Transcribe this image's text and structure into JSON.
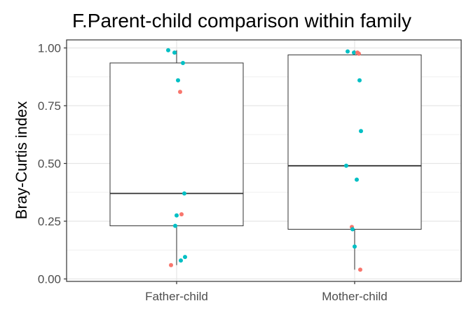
{
  "chart_data": {
    "type": "box",
    "title": "F.Parent-child comparison within family",
    "xlabel": "",
    "ylabel": "Bray-Curtis index",
    "categories": [
      "Father-child",
      "Mother-child"
    ],
    "ylim": [
      0,
      1.0
    ],
    "yticks": [
      0.0,
      0.25,
      0.5,
      0.75,
      1.0
    ],
    "ytick_labels": [
      "0.00",
      "0.25",
      "0.50",
      "0.75",
      "1.00"
    ],
    "grid": true,
    "legend": "none",
    "boxes": [
      {
        "category": "Father-child",
        "whisker_low": 0.06,
        "q1": 0.23,
        "median": 0.37,
        "q3": 0.935,
        "whisker_high": 0.99
      },
      {
        "category": "Mother-child",
        "whisker_low": 0.04,
        "q1": 0.215,
        "median": 0.49,
        "q3": 0.97,
        "whisker_high": 0.99
      }
    ],
    "points": [
      {
        "category": "Father-child",
        "y": 0.99,
        "color": "#00BFC4"
      },
      {
        "category": "Father-child",
        "y": 0.98,
        "color": "#00BFC4"
      },
      {
        "category": "Father-child",
        "y": 0.935,
        "color": "#00BFC4"
      },
      {
        "category": "Father-child",
        "y": 0.86,
        "color": "#00BFC4"
      },
      {
        "category": "Father-child",
        "y": 0.81,
        "color": "#F8766D"
      },
      {
        "category": "Father-child",
        "y": 0.37,
        "color": "#00BFC4"
      },
      {
        "category": "Father-child",
        "y": 0.28,
        "color": "#F8766D"
      },
      {
        "category": "Father-child",
        "y": 0.275,
        "color": "#00BFC4"
      },
      {
        "category": "Father-child",
        "y": 0.23,
        "color": "#00BFC4"
      },
      {
        "category": "Father-child",
        "y": 0.095,
        "color": "#00BFC4"
      },
      {
        "category": "Father-child",
        "y": 0.08,
        "color": "#00BFC4"
      },
      {
        "category": "Father-child",
        "y": 0.06,
        "color": "#F8766D"
      },
      {
        "category": "Mother-child",
        "y": 0.985,
        "color": "#00BFC4"
      },
      {
        "category": "Mother-child",
        "y": 0.98,
        "color": "#00BFC4"
      },
      {
        "category": "Mother-child",
        "y": 0.98,
        "color": "#F8766D"
      },
      {
        "category": "Mother-child",
        "y": 0.975,
        "color": "#F8766D"
      },
      {
        "category": "Mother-child",
        "y": 0.86,
        "color": "#00BFC4"
      },
      {
        "category": "Mother-child",
        "y": 0.64,
        "color": "#00BFC4"
      },
      {
        "category": "Mother-child",
        "y": 0.49,
        "color": "#00BFC4"
      },
      {
        "category": "Mother-child",
        "y": 0.43,
        "color": "#00BFC4"
      },
      {
        "category": "Mother-child",
        "y": 0.225,
        "color": "#F8766D"
      },
      {
        "category": "Mother-child",
        "y": 0.215,
        "color": "#00BFC4"
      },
      {
        "category": "Mother-child",
        "y": 0.14,
        "color": "#00BFC4"
      },
      {
        "category": "Mother-child",
        "y": 0.04,
        "color": "#F8766D"
      }
    ]
  }
}
